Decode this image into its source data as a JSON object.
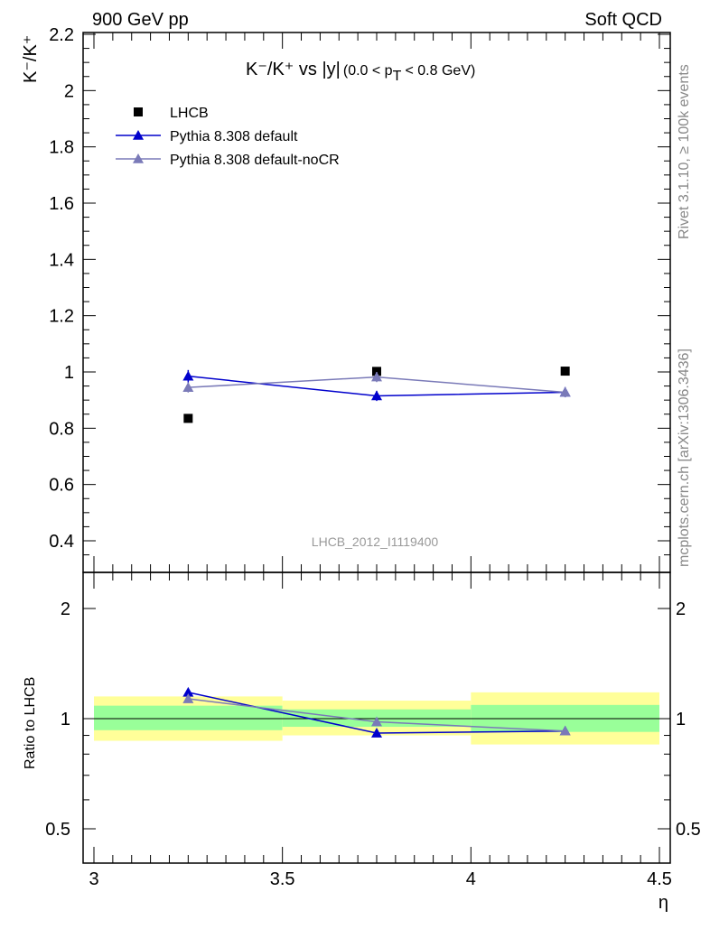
{
  "header": {
    "left": "900 GeV pp",
    "right": "Soft QCD"
  },
  "side_labels": {
    "rivet": "Rivet 3.1.10, ≥ 100k events",
    "mcplots": "mcplots.cern.ch [arXiv:1306.3436]"
  },
  "analysis_id": "LHCB_2012_I1119400",
  "chart_data": [
    {
      "type": "scatter",
      "panel": "main",
      "title_main": "K⁻/K⁺ vs |y|",
      "title_range": "(0.0 < p",
      "title_sub": "T",
      "title_tail": " < 0.8 GeV)",
      "ylabel": "K⁻/K⁺",
      "xlim": [
        3.0,
        4.5
      ],
      "ylim": [
        0.3,
        2.2
      ],
      "x_ticks": [
        "3",
        "3.5",
        "4",
        "4.5"
      ],
      "y_ticks": [
        "0.4",
        "0.6",
        "0.8",
        "1",
        "1.2",
        "1.4",
        "1.6",
        "1.8",
        "2",
        "2.2"
      ],
      "x": [
        3.25,
        3.75,
        4.25
      ],
      "series": [
        {
          "name": "LHCB",
          "color": "#000000",
          "marker": "square",
          "values": [
            0.835,
            1.002,
            1.003
          ],
          "errors": [
            0,
            0,
            0
          ]
        },
        {
          "name": "Pythia 8.308 default",
          "color": "#0000cc",
          "marker": "triangle",
          "values": [
            0.985,
            0.915,
            0.928
          ],
          "errors": [
            0.022,
            0.018,
            0.018
          ]
        },
        {
          "name": "Pythia 8.308 default-noCR",
          "color": "#7a7ab8",
          "marker": "triangle",
          "values": [
            0.945,
            0.982,
            0.928
          ],
          "errors": [
            0.018,
            0.018,
            0.018
          ]
        }
      ]
    },
    {
      "type": "scatter",
      "panel": "ratio",
      "ylabel": "Ratio to LHCB",
      "xlabel": "η",
      "xlim": [
        3.0,
        4.5
      ],
      "ylim": [
        0.4,
        2.4
      ],
      "y_scale": "log",
      "y_ticks": [
        "0.5",
        "1",
        "2"
      ],
      "bands": [
        {
          "x_low": 3.0,
          "x_high": 3.5,
          "inner": [
            0.93,
            1.085
          ],
          "outer": [
            0.87,
            1.15
          ]
        },
        {
          "x_low": 3.5,
          "x_high": 4.0,
          "inner": [
            0.95,
            1.06
          ],
          "outer": [
            0.9,
            1.12
          ]
        },
        {
          "x_low": 4.0,
          "x_high": 4.5,
          "inner": [
            0.92,
            1.09
          ],
          "outer": [
            0.85,
            1.18
          ]
        }
      ],
      "x": [
        3.25,
        3.75,
        4.25
      ],
      "series": [
        {
          "name": "Pythia 8.308 default",
          "color": "#0000cc",
          "values": [
            1.18,
            0.913,
            0.925
          ],
          "errors": [
            0.025,
            0.012,
            0.012
          ]
        },
        {
          "name": "Pythia 8.308 default-noCR",
          "color": "#7a7ab8",
          "values": [
            1.133,
            0.98,
            0.925
          ],
          "errors": [
            0.02,
            0.012,
            0.012
          ]
        }
      ],
      "band_colors": {
        "inner": "#99ff99",
        "outer": "#ffff99"
      }
    }
  ]
}
